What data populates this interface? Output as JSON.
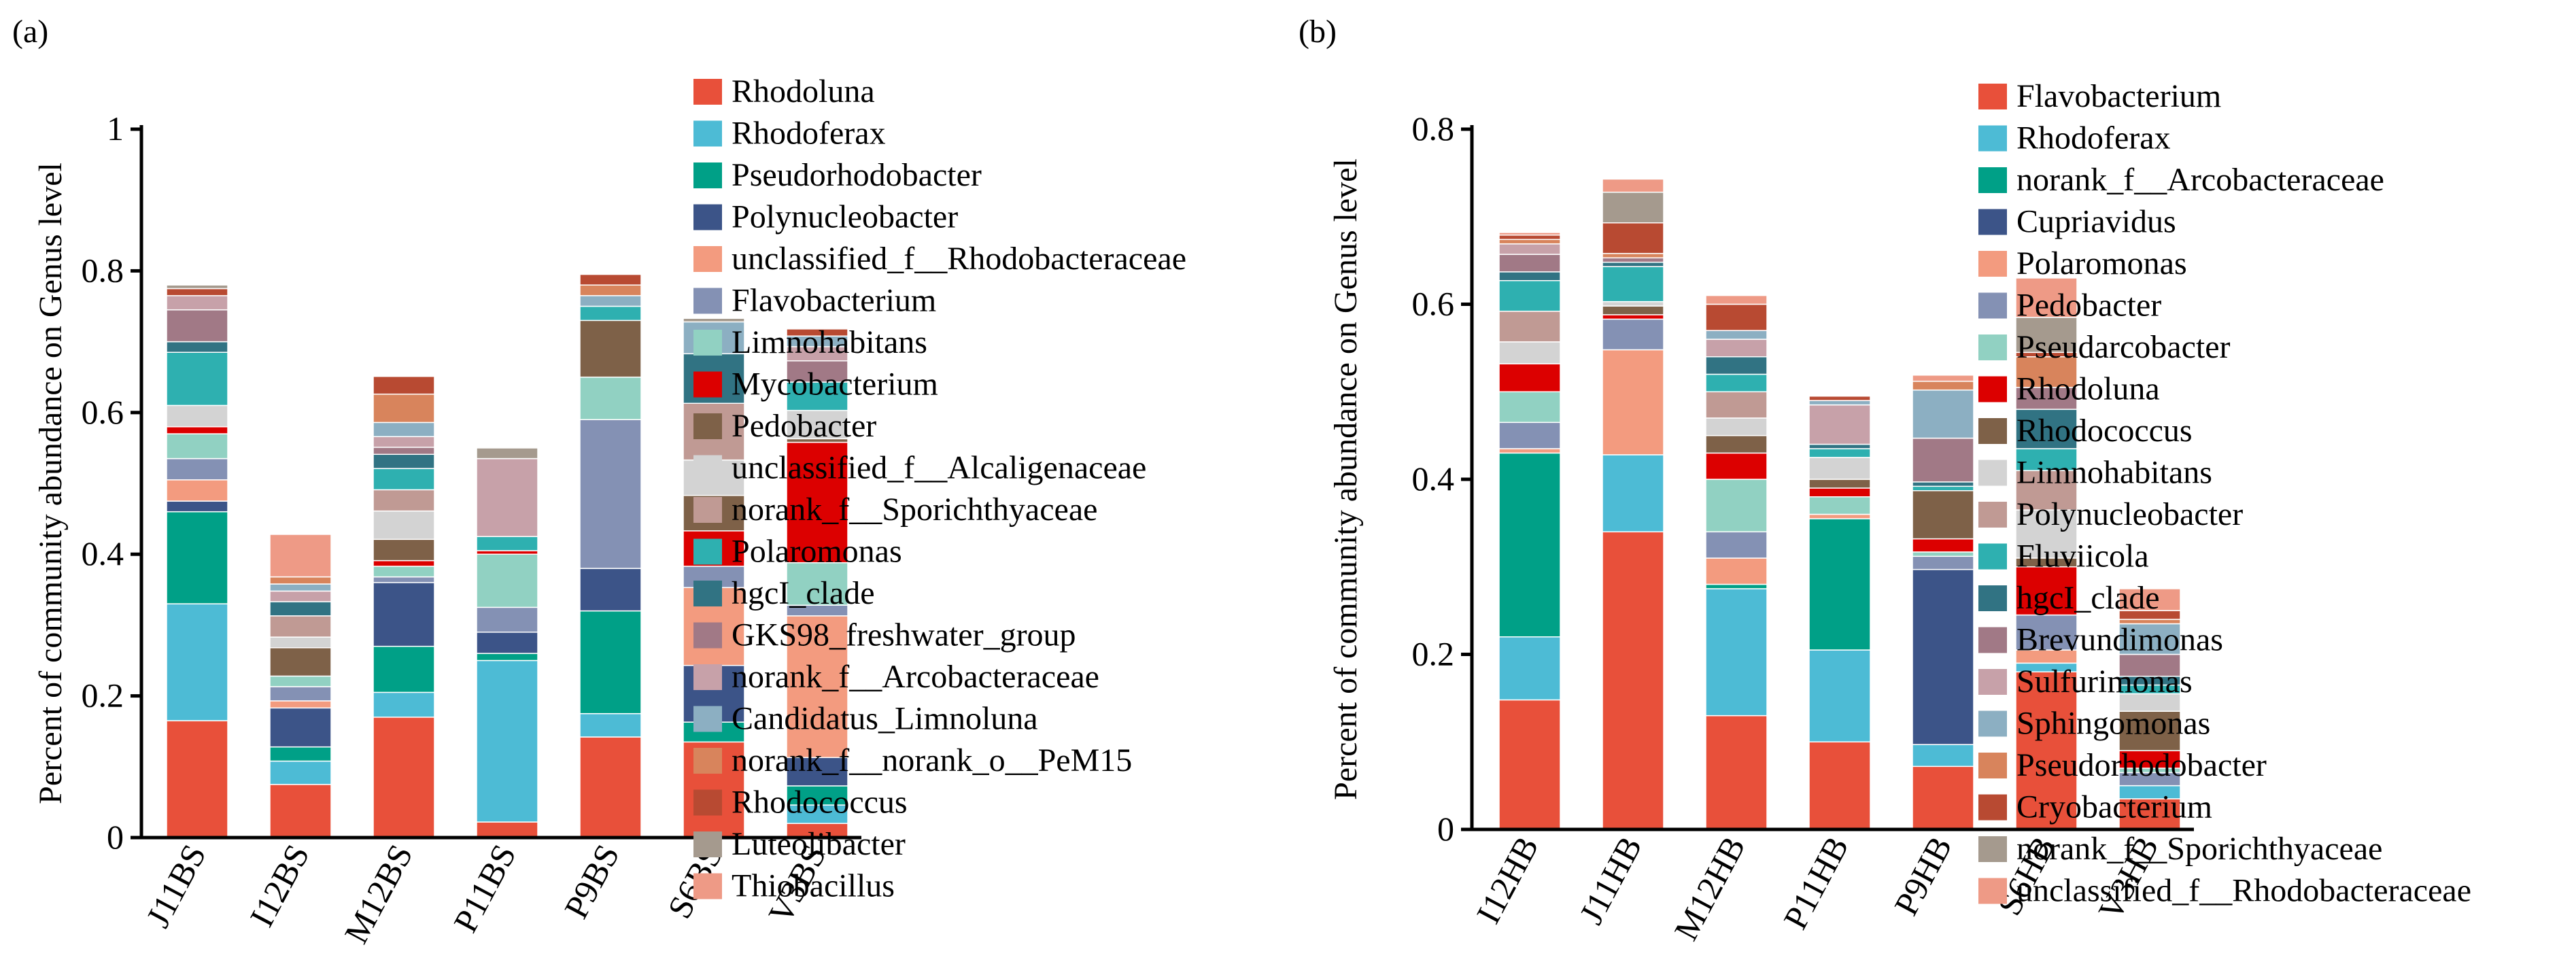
{
  "chart_data": [
    {
      "panel_label": "(a)",
      "type": "bar",
      "stacked": true,
      "ylabel": "Percent of community abundance on Genus level",
      "xlabel": "",
      "ylim": [
        0,
        1
      ],
      "yticks": [
        0,
        0.2,
        0.4,
        0.6,
        0.8,
        1
      ],
      "ytick_labels": [
        "0",
        "0.2",
        "0.4",
        "0.6",
        "0.8",
        "1"
      ],
      "categories": [
        "J11BS",
        "I12BS",
        "M12BS",
        "P11BS",
        "P9BS",
        "S6BS",
        "V3BS"
      ],
      "legend_position": "right",
      "series": [
        {
          "name": "Rhodoluna",
          "color": "#E8503A",
          "values": [
            0.165,
            0.075,
            0.17,
            0.022,
            0.142,
            0.135,
            0.02
          ]
        },
        {
          "name": "Rhodoferax",
          "color": "#4DBBD5",
          "values": [
            0.165,
            0.033,
            0.035,
            0.228,
            0.033,
            0.0,
            0.026
          ]
        },
        {
          "name": "Pseudorhodobacter",
          "color": "#00A087",
          "values": [
            0.13,
            0.02,
            0.065,
            0.01,
            0.145,
            0.028,
            0.027
          ]
        },
        {
          "name": "Polynucleobacter",
          "color": "#3C5488",
          "values": [
            0.015,
            0.055,
            0.09,
            0.03,
            0.06,
            0.08,
            0.04
          ]
        },
        {
          "name": "unclassified_f__Rhodobacteraceae",
          "color": "#F39B7F",
          "values": [
            0.03,
            0.01,
            0.0,
            0.0,
            0.0,
            0.11,
            0.2
          ]
        },
        {
          "name": "Flavobacterium",
          "color": "#8491B4",
          "values": [
            0.03,
            0.02,
            0.008,
            0.035,
            0.21,
            0.03,
            0.015
          ]
        },
        {
          "name": "Limnohabitans",
          "color": "#91D1C2",
          "values": [
            0.035,
            0.015,
            0.015,
            0.075,
            0.06,
            0.0,
            0.06
          ]
        },
        {
          "name": "Mycobacterium",
          "color": "#DC0000",
          "values": [
            0.01,
            0.0,
            0.008,
            0.005,
            0.0,
            0.05,
            0.17
          ]
        },
        {
          "name": "Pedobacter",
          "color": "#7E6148",
          "values": [
            0.0,
            0.04,
            0.03,
            0.0,
            0.08,
            0.05,
            0.005
          ]
        },
        {
          "name": "unclassified_f__Alcaligenaceae",
          "color": "#D3D3D3",
          "values": [
            0.03,
            0.015,
            0.04,
            0.0,
            0.0,
            0.05,
            0.04
          ]
        },
        {
          "name": "norank_f__Sporichthyaceae",
          "color": "#C09A94",
          "values": [
            0.0,
            0.03,
            0.03,
            0.0,
            0.0,
            0.08,
            0.0
          ]
        },
        {
          "name": "Polaromonas",
          "color": "#2EB0B0",
          "values": [
            0.075,
            0.0,
            0.03,
            0.02,
            0.02,
            0.0,
            0.04
          ]
        },
        {
          "name": "hgcI_clade",
          "color": "#317383",
          "values": [
            0.015,
            0.02,
            0.02,
            0.0,
            0.0,
            0.07,
            0.0
          ]
        },
        {
          "name": "GKS98_freshwater_group",
          "color": "#A17986",
          "values": [
            0.045,
            0.0,
            0.01,
            0.0,
            0.0,
            0.0,
            0.03
          ]
        },
        {
          "name": "norank_f__Arcobacteraceae",
          "color": "#C7A1A9",
          "values": [
            0.02,
            0.015,
            0.015,
            0.11,
            0.0,
            0.0,
            0.02
          ]
        },
        {
          "name": "Candidatus_Limnoluna",
          "color": "#8CAFC2",
          "values": [
            0.0,
            0.01,
            0.02,
            0.0,
            0.015,
            0.045,
            0.015
          ]
        },
        {
          "name": "norank_f__norank_o__PeM15",
          "color": "#D8845C",
          "values": [
            0.0,
            0.01,
            0.04,
            0.0,
            0.015,
            0.0,
            0.0
          ]
        },
        {
          "name": "Rhodococcus",
          "color": "#B84A32",
          "values": [
            0.01,
            0.0,
            0.025,
            0.0,
            0.015,
            0.0,
            0.01
          ]
        },
        {
          "name": "Luteolibacter",
          "color": "#A59A8E",
          "values": [
            0.005,
            0.0,
            0.0,
            0.015,
            0.0,
            0.005,
            0.0
          ]
        },
        {
          "name": "Thiobacillus",
          "color": "#EE9A86",
          "values": [
            0.0,
            0.06,
            0.0,
            0.0,
            0.0,
            0.0,
            0.0
          ]
        }
      ]
    },
    {
      "panel_label": "(b)",
      "type": "bar",
      "stacked": true,
      "ylabel": "Percent of community abundance on Genus level",
      "xlabel": "",
      "ylim": [
        0,
        0.8
      ],
      "yticks": [
        0,
        0.2,
        0.4,
        0.6,
        0.8
      ],
      "ytick_labels": [
        "0",
        "0.2",
        "0.4",
        "0.6",
        "0.8"
      ],
      "categories": [
        "I12HB",
        "J11HB",
        "M12HB",
        "P11HB",
        "P9HB",
        "S6HB",
        "V3HB"
      ],
      "legend_position": "right",
      "series": [
        {
          "name": "Flavobacterium",
          "color": "#E8503A",
          "values": [
            0.148,
            0.34,
            0.13,
            0.1,
            0.072,
            0.18,
            0.035
          ]
        },
        {
          "name": "Rhodoferax",
          "color": "#4DBBD5",
          "values": [
            0.072,
            0.088,
            0.145,
            0.105,
            0.025,
            0.01,
            0.015
          ]
        },
        {
          "name": "norank_f__Arcobacteraceae",
          "color": "#00A087",
          "values": [
            0.21,
            0.0,
            0.005,
            0.15,
            0.0,
            0.0,
            0.0
          ]
        },
        {
          "name": "Cupriavidus",
          "color": "#3C5488",
          "values": [
            0.0,
            0.0,
            0.0,
            0.0,
            0.2,
            0.0,
            0.0
          ]
        },
        {
          "name": "Polaromonas",
          "color": "#F39B7F",
          "values": [
            0.005,
            0.12,
            0.03,
            0.005,
            0.0,
            0.015,
            0.0
          ]
        },
        {
          "name": "Pedobacter",
          "color": "#8491B4",
          "values": [
            0.03,
            0.035,
            0.03,
            0.0,
            0.015,
            0.04,
            0.015
          ]
        },
        {
          "name": "Pseudarcobacter",
          "color": "#91D1C2",
          "values": [
            0.035,
            0.0,
            0.06,
            0.02,
            0.005,
            0.0,
            0.005
          ]
        },
        {
          "name": "Rhodoluna",
          "color": "#DC0000",
          "values": [
            0.032,
            0.005,
            0.03,
            0.01,
            0.015,
            0.055,
            0.02
          ]
        },
        {
          "name": "Rhodococcus",
          "color": "#7E6148",
          "values": [
            0.0,
            0.01,
            0.02,
            0.01,
            0.055,
            0.01,
            0.045
          ]
        },
        {
          "name": "Limnohabitans",
          "color": "#D3D3D3",
          "values": [
            0.025,
            0.005,
            0.02,
            0.025,
            0.0,
            0.055,
            0.02
          ]
        },
        {
          "name": "Polynucleobacter",
          "color": "#C09A94",
          "values": [
            0.035,
            0.0,
            0.03,
            0.0,
            0.0,
            0.045,
            0.0
          ]
        },
        {
          "name": "Fluviicola",
          "color": "#2EB0B0",
          "values": [
            0.035,
            0.04,
            0.02,
            0.01,
            0.005,
            0.025,
            0.01
          ]
        },
        {
          "name": "hgcI_clade",
          "color": "#317383",
          "values": [
            0.01,
            0.005,
            0.02,
            0.005,
            0.005,
            0.045,
            0.01
          ]
        },
        {
          "name": "Brevundimonas",
          "color": "#A17986",
          "values": [
            0.02,
            0.005,
            0.0,
            0.0,
            0.05,
            0.025,
            0.025
          ]
        },
        {
          "name": "Sulfurimonas",
          "color": "#C7A1A9",
          "values": [
            0.012,
            0.0,
            0.02,
            0.045,
            0.0,
            0.0,
            0.0
          ]
        },
        {
          "name": "Sphingomonas",
          "color": "#8CAFC2",
          "values": [
            0.0,
            0.0,
            0.01,
            0.005,
            0.055,
            0.0,
            0.035
          ]
        },
        {
          "name": "Pseudorhodobacter",
          "color": "#D8845C",
          "values": [
            0.005,
            0.005,
            0.0,
            0.0,
            0.01,
            0.035,
            0.005
          ]
        },
        {
          "name": "Cryobacterium",
          "color": "#B84A32",
          "values": [
            0.005,
            0.035,
            0.03,
            0.005,
            0.0,
            0.005,
            0.01
          ]
        },
        {
          "name": "norank_f__Sporichthyaceae",
          "color": "#A59A8E",
          "values": [
            0.0,
            0.035,
            0.0,
            0.0,
            0.0,
            0.04,
            0.0
          ]
        },
        {
          "name": "unclassified_f__Rhodobacteraceae",
          "color": "#EE9A86",
          "values": [
            0.003,
            0.015,
            0.01,
            0.0,
            0.007,
            0.045,
            0.025
          ]
        }
      ]
    }
  ]
}
